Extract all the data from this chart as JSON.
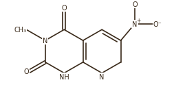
{
  "bg_color": "#ffffff",
  "line_color": "#3a2a1a",
  "figsize": [
    2.6,
    1.47
  ],
  "dpi": 100,
  "lw": 1.2,
  "fs": 7.0,
  "fs_small": 5.5
}
